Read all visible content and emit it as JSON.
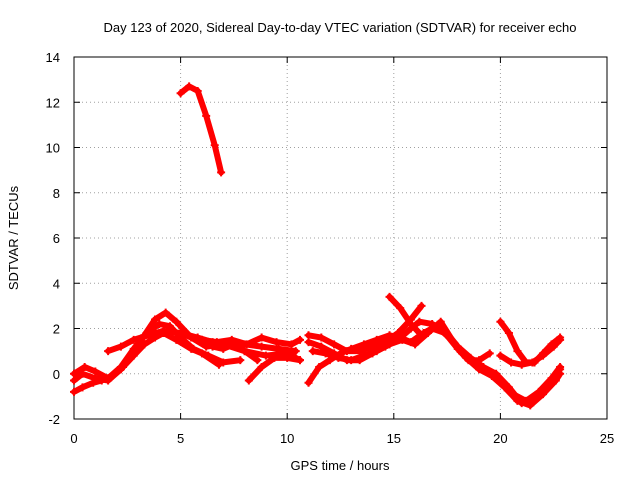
{
  "chart_data": {
    "type": "scatter",
    "title": "Day 123 of 2020, Sidereal Day-to-day VTEC variation (SDTVAR) for receiver echo",
    "xlabel": "GPS time / hours",
    "ylabel": "SDTVAR / TECUs",
    "xlim": [
      0,
      25
    ],
    "ylim": [
      -2,
      14
    ],
    "xticks": [
      0,
      5,
      10,
      15,
      20,
      25
    ],
    "yticks": [
      -2,
      0,
      2,
      4,
      6,
      8,
      10,
      12,
      14
    ],
    "grid": true,
    "color": "#ff0000",
    "series": [
      {
        "name": "track-1",
        "x": [
          0.0,
          0.4,
          1.0,
          1.6,
          2.2,
          2.8,
          3.3,
          3.8,
          4.3,
          4.8,
          5.5,
          6.2,
          7.0,
          8.0,
          9.0,
          10.0,
          10.6
        ],
        "y": [
          -0.3,
          0.0,
          -0.2,
          -0.3,
          0.2,
          0.9,
          1.7,
          2.4,
          2.7,
          2.3,
          1.6,
          1.2,
          1.3,
          1.0,
          0.8,
          0.9,
          0.6
        ]
      },
      {
        "name": "track-2",
        "x": [
          0.0,
          0.5,
          1.0,
          1.6,
          2.2,
          2.8,
          3.4,
          4.0,
          4.5,
          5.0,
          5.6,
          6.3,
          7.0,
          7.8
        ],
        "y": [
          0.0,
          0.3,
          0.1,
          -0.2,
          0.3,
          1.1,
          1.8,
          2.2,
          2.1,
          1.6,
          1.1,
          0.8,
          0.5,
          0.6
        ]
      },
      {
        "name": "track-3",
        "x": [
          0.0,
          0.4,
          0.9,
          1.3,
          1.8,
          2.3,
          2.8,
          3.3,
          3.8,
          4.2,
          4.8,
          5.5,
          6.0,
          6.8
        ],
        "y": [
          -0.8,
          -0.6,
          -0.4,
          -0.3,
          -0.1,
          0.3,
          0.8,
          1.3,
          1.6,
          1.8,
          1.5,
          1.1,
          0.9,
          0.4
        ]
      },
      {
        "name": "track-4",
        "x": [
          5.0,
          5.5,
          6.0,
          6.5,
          7.0,
          7.5,
          8.0,
          8.6
        ],
        "y": [
          1.8,
          1.6,
          1.5,
          1.2,
          1.1,
          1.3,
          1.0,
          0.6
        ]
      },
      {
        "name": "track-5",
        "x": [
          1.6,
          2.2,
          2.8,
          3.5,
          4.2,
          5.0,
          5.8,
          6.5,
          7.2,
          8.0,
          8.8,
          9.6,
          10.4
        ],
        "y": [
          1.0,
          1.2,
          1.5,
          1.7,
          1.9,
          1.8,
          1.6,
          1.4,
          1.4,
          1.3,
          1.2,
          1.1,
          1.0
        ]
      },
      {
        "name": "track-6",
        "x": [
          6.0,
          6.7,
          7.4,
          8.1,
          8.8,
          9.5,
          10.2,
          10.6
        ],
        "y": [
          1.5,
          1.4,
          1.5,
          1.3,
          1.6,
          1.4,
          1.3,
          1.5
        ]
      },
      {
        "name": "track-7",
        "x": [
          8.2,
          8.8,
          9.4,
          10.0,
          10.6
        ],
        "y": [
          -0.3,
          0.3,
          0.7,
          0.7,
          0.6
        ]
      },
      {
        "name": "track-8",
        "x": [
          5.0,
          5.4,
          5.8,
          6.2,
          6.6,
          6.9
        ],
        "y": [
          12.4,
          12.7,
          12.5,
          11.4,
          10.1,
          8.9
        ]
      },
      {
        "name": "track-9",
        "x": [
          11.0,
          11.5,
          12.0,
          12.5,
          13.0,
          13.6,
          14.2,
          14.8,
          15.3,
          15.8,
          16.4,
          17.0,
          17.6,
          18.2,
          18.8,
          19.4,
          20.0,
          20.6,
          21.2,
          21.8,
          22.4,
          22.8
        ],
        "y": [
          -0.4,
          0.3,
          0.6,
          0.9,
          1.1,
          1.3,
          1.5,
          1.7,
          1.6,
          1.4,
          1.8,
          2.1,
          1.6,
          0.9,
          0.5,
          0.1,
          -0.4,
          -0.9,
          -1.2,
          -0.8,
          -0.2,
          0.3
        ]
      },
      {
        "name": "track-10",
        "x": [
          11.0,
          11.6,
          12.2,
          12.8,
          13.4,
          14.0,
          14.6,
          15.2,
          15.8,
          16.2,
          16.8,
          17.4,
          18.0,
          18.6,
          19.2,
          19.8,
          20.4,
          21.0,
          21.6,
          22.2,
          22.8
        ],
        "y": [
          1.4,
          1.2,
          0.9,
          0.6,
          0.6,
          0.9,
          1.2,
          1.5,
          2.0,
          2.3,
          2.2,
          1.9,
          1.2,
          0.7,
          0.3,
          0.0,
          -0.6,
          -1.3,
          -1.1,
          -0.5,
          0.2
        ]
      },
      {
        "name": "track-11",
        "x": [
          11.0,
          11.6,
          12.2,
          12.8,
          13.4,
          14.0,
          14.6,
          15.2,
          15.8,
          16.3
        ],
        "y": [
          1.7,
          1.6,
          1.3,
          1.0,
          1.0,
          1.2,
          1.4,
          1.8,
          2.4,
          3.0
        ]
      },
      {
        "name": "track-12",
        "x": [
          11.2,
          11.8,
          12.4,
          13.0,
          13.6,
          14.2,
          14.8,
          15.4,
          16.0,
          16.6,
          17.2,
          17.8,
          18.4,
          19.0,
          19.6,
          20.2,
          20.8,
          21.4,
          22.0,
          22.6,
          22.8
        ],
        "y": [
          1.0,
          0.9,
          0.7,
          0.6,
          0.8,
          1.0,
          1.3,
          1.5,
          1.3,
          1.8,
          2.3,
          1.4,
          0.7,
          0.2,
          -0.1,
          -0.6,
          -1.2,
          -1.4,
          -0.9,
          -0.3,
          0.0
        ]
      },
      {
        "name": "track-13",
        "x": [
          14.8,
          15.3,
          15.8,
          16.3,
          16.8,
          17.4,
          18.0,
          18.5,
          19.0,
          19.5
        ],
        "y": [
          3.4,
          2.9,
          2.2,
          1.7,
          2.0,
          1.8,
          1.1,
          0.6,
          0.6,
          0.9
        ]
      },
      {
        "name": "track-14",
        "x": [
          20.0,
          20.4,
          20.8,
          21.2,
          21.6,
          22.0,
          22.4,
          22.8
        ],
        "y": [
          2.3,
          1.8,
          1.0,
          0.5,
          0.5,
          0.9,
          1.3,
          1.6
        ]
      },
      {
        "name": "track-15",
        "x": [
          20.0,
          20.5,
          21.0,
          21.5,
          22.0,
          22.5,
          22.8
        ],
        "y": [
          0.8,
          0.5,
          0.4,
          0.5,
          0.8,
          1.2,
          1.5
        ]
      }
    ]
  }
}
